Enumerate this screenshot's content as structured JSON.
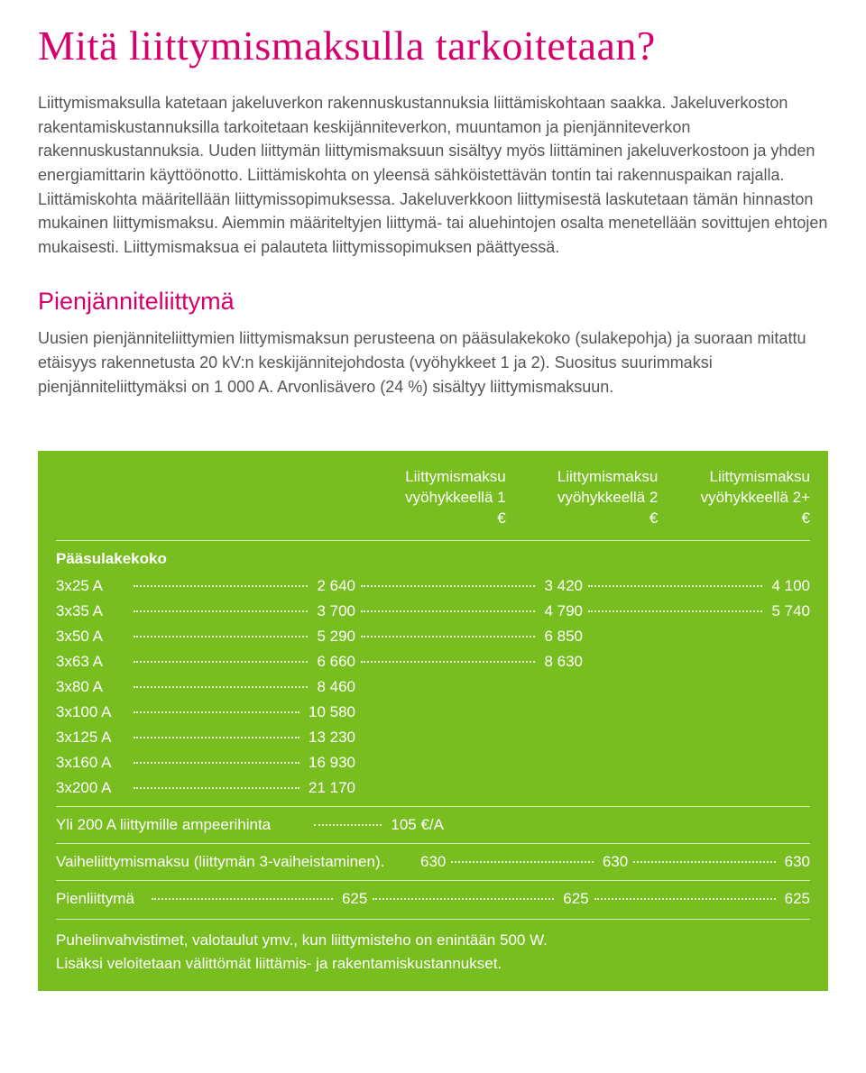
{
  "title": "Mitä liittymismaksulla tarkoitetaan?",
  "intro": "Liittymismaksulla katetaan jakeluverkon rakennuskustannuksia liittämiskohtaan saakka. Jakeluverkoston rakentamiskustannuksilla tarkoitetaan keskijänniteverkon, muuntamon ja pienjänniteverkon rakennuskustannuksia. Uuden liittymän liittymismaksuun sisältyy myös liittäminen jakeluverkostoon ja yhden energiamittarin käyttöönotto. Liittämiskohta on yleensä sähköistettävän tontin tai rakennuspaikan rajalla. Liittämiskohta määritellään liittymissopimuksessa. Jakeluverkkoon liittymisestä laskutetaan tämän hinnaston mukainen liittymismaksu. Aiemmin määriteltyjen liittymä- tai aluehintojen osalta menetellään sovittujen ehtojen mukaisesti. Liittymismaksua ei palauteta liittymissopimuksen päättyessä.",
  "sub_heading": "Pienjänniteliittymä",
  "sub_text": "Uusien pienjänniteliittymien liittymismaksun perusteena on pääsulakekoko (sulakepohja) ja suoraan mitattu etäisyys rakennetusta 20 kV:n keskijännitejohdosta (vyöhykkeet 1 ja 2). Suositus suurimmaksi pienjänniteliittymäksi on 1 000 A. Arvonlisävero (24 %) sisältyy liittymismaksuun.",
  "table": {
    "headers": {
      "col1_a": "Liittymismaksu",
      "col1_b": "vyöhykkeellä 1",
      "col1_c": "€",
      "col2_a": "Liittymismaksu",
      "col2_b": "vyöhykkeellä 2",
      "col2_c": "€",
      "col3_a": "Liittymismaksu",
      "col3_b": "vyöhykkeellä 2+",
      "col3_c": "€"
    },
    "section1_label": "Pääsulakekoko",
    "rows3": [
      {
        "label": "3x25 A",
        "v1": "2 640",
        "v2": "3 420",
        "v3": "4 100"
      },
      {
        "label": "3x35 A",
        "v1": "3 700",
        "v2": "4 790",
        "v3": "5 740"
      }
    ],
    "rows2": [
      {
        "label": "3x50 A",
        "v1": "5 290",
        "v2": "6 850"
      },
      {
        "label": "3x63 A",
        "v1": "6 660",
        "v2": "8 630"
      }
    ],
    "rows1": [
      {
        "label": "3x80 A",
        "v1": "8 460"
      },
      {
        "label": "3x100 A",
        "v1": "10 580"
      },
      {
        "label": "3x125 A",
        "v1": "13 230"
      },
      {
        "label": "3x160 A",
        "v1": "16 930"
      },
      {
        "label": "3x200 A",
        "v1": "21 170"
      }
    ],
    "over200": {
      "label": "Yli 200 A liittymille ampeerihinta",
      "v1": "105 €/A"
    },
    "vaihe": {
      "label": "Vaiheliittymismaksu (liittymän 3-vaiheistaminen).",
      "v1": "630",
      "v2": "630",
      "v3": "630"
    },
    "pien": {
      "label": "Pienliittymä",
      "v1": "625",
      "v2": "625",
      "v3": "625"
    },
    "note_a": "Puhelinvahvistimet, valotaulut ymv., kun liittymisteho on enintään 500 W.",
    "note_b": "Lisäksi veloitetaan välittömät liittämis- ja rakentamiskustannukset."
  },
  "colors": {
    "brand_pink": "#d6006d",
    "table_green": "#78be20",
    "text_body": "#555555",
    "text_white": "#ffffff"
  }
}
